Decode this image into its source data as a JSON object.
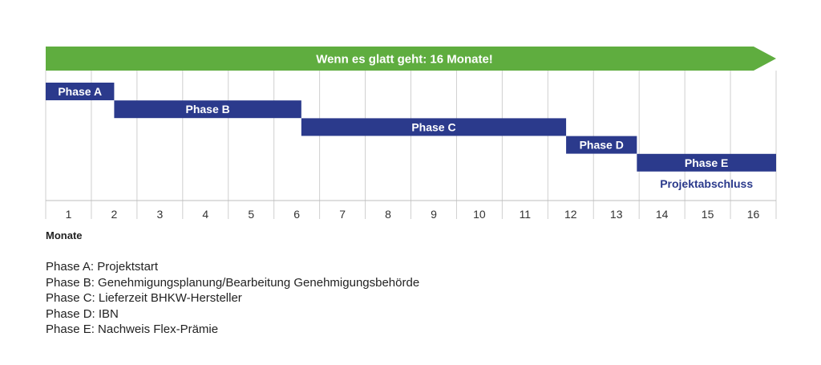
{
  "chart_data": {
    "type": "gantt",
    "banner": {
      "text": "Wenn es glatt geht: 16 Monate!",
      "color": "#5fad3f"
    },
    "months": [
      "1",
      "2",
      "3",
      "4",
      "5",
      "6",
      "7",
      "8",
      "9",
      "10",
      "11",
      "12",
      "13",
      "14",
      "15",
      "16"
    ],
    "xlabel": "Monate",
    "bar_color": "#2b3a8c",
    "phases": [
      {
        "label": "Phase A",
        "start": 0,
        "end": 1.5
      },
      {
        "label": "Phase B",
        "start": 1.5,
        "end": 5.6
      },
      {
        "label": "Phase C",
        "start": 5.6,
        "end": 11.4
      },
      {
        "label": "Phase D",
        "start": 11.4,
        "end": 12.95
      },
      {
        "label": "Phase E",
        "start": 12.95,
        "end": 16
      }
    ],
    "annotation": {
      "text": "Projektabschluss",
      "phase": "Phase E"
    },
    "grid": true
  },
  "legend": [
    "Phase A: Projektstart",
    "Phase B: Genehmigungsplanung/Bearbeitung Genehmigungsbehörde",
    "Phase C: Lieferzeit BHKW-Hersteller",
    "Phase D: IBN",
    "Phase E: Nachweis Flex-Prämie"
  ]
}
